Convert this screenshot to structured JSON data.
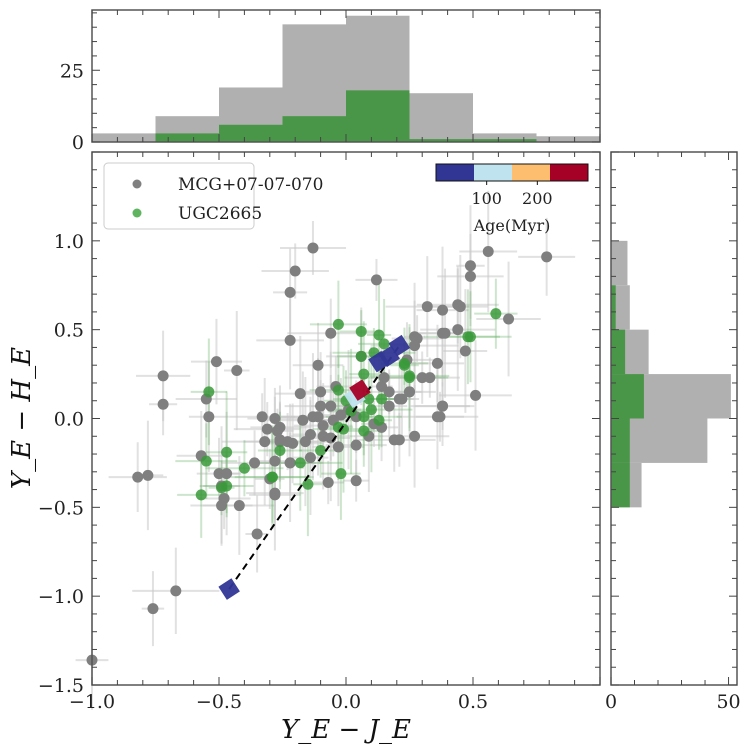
{
  "chart_data": [
    {
      "id": "main",
      "type": "scatter",
      "title": "",
      "xlabel": "Y_E − J_E",
      "ylabel": "Y_E − H_E",
      "xlim": [
        -1.0,
        1.0
      ],
      "ylim": [
        -1.5,
        1.5
      ],
      "xticks": [
        -1.0,
        -0.5,
        0.0,
        0.5
      ],
      "xtick_labels": [
        "−1.0",
        "−0.5",
        "0.0",
        "0.5"
      ],
      "yticks": [
        -1.5,
        -1.0,
        -0.5,
        0.0,
        0.5,
        1.0
      ],
      "ytick_labels": [
        "−1.5",
        "−1.0",
        "−0.5",
        "0.0",
        "0.5",
        "1.0"
      ],
      "grid": false,
      "legend_position": "top-left",
      "series": [
        {
          "name": "MCG+07-07-070",
          "color": "#808080",
          "points": [
            [
              -0.72,
              0.24
            ],
            [
              -0.72,
              0.08
            ],
            [
              -0.51,
              0.32
            ],
            [
              -0.43,
              0.27
            ],
            [
              -0.55,
              0.11
            ],
            [
              -0.54,
              0.01
            ],
            [
              -0.33,
              0.01
            ],
            [
              -0.28,
              0.0
            ],
            [
              -0.31,
              -0.06
            ],
            [
              -0.26,
              -0.05
            ],
            [
              -0.27,
              -0.07
            ],
            [
              -0.32,
              -0.13
            ],
            [
              -0.26,
              -0.13
            ],
            [
              -0.23,
              -0.13
            ],
            [
              -0.57,
              -0.21
            ],
            [
              -0.36,
              -0.25
            ],
            [
              -0.28,
              -0.24
            ],
            [
              -0.22,
              -0.25
            ],
            [
              -0.82,
              -0.33
            ],
            [
              -0.78,
              -0.32
            ],
            [
              -0.5,
              -0.31
            ],
            [
              -0.47,
              -0.31
            ],
            [
              -0.49,
              -0.38
            ],
            [
              -0.48,
              -0.45
            ],
            [
              -0.49,
              -0.49
            ],
            [
              -0.42,
              -0.49
            ],
            [
              -0.3,
              -0.34
            ],
            [
              -0.28,
              -0.43
            ],
            [
              -0.35,
              -0.65
            ],
            [
              -0.22,
              0.44
            ],
            [
              -0.06,
              0.48
            ],
            [
              -0.11,
              0.3
            ],
            [
              -0.18,
              0.14
            ],
            [
              -0.1,
              0.15
            ],
            [
              -0.04,
              0.18
            ],
            [
              -0.1,
              0.07
            ],
            [
              -0.06,
              0.07
            ],
            [
              -0.13,
              0.01
            ],
            [
              -0.11,
              0.01
            ],
            [
              -0.17,
              -0.01
            ],
            [
              -0.09,
              -0.04
            ],
            [
              -0.05,
              -0.01
            ],
            [
              -0.14,
              -0.09
            ],
            [
              -0.09,
              -0.1
            ],
            [
              -0.06,
              -0.11
            ],
            [
              -0.26,
              -0.12
            ],
            [
              -0.21,
              -0.14
            ],
            [
              -0.16,
              -0.13
            ],
            [
              -0.03,
              -0.16
            ],
            [
              0.04,
              -0.15
            ],
            [
              0.09,
              -0.1
            ],
            [
              0.19,
              -0.12
            ],
            [
              0.21,
              -0.12
            ],
            [
              0.27,
              -0.1
            ],
            [
              -0.22,
              -0.25
            ],
            [
              -0.14,
              -0.22
            ],
            [
              -0.07,
              -0.36
            ],
            [
              0.04,
              -0.35
            ],
            [
              -0.28,
              -0.42
            ],
            [
              0.15,
              0.23
            ],
            [
              0.17,
              0.15
            ],
            [
              0.21,
              0.11
            ],
            [
              0.25,
              0.15
            ],
            [
              0.17,
              0.07
            ],
            [
              0.3,
              0.23
            ],
            [
              0.33,
              0.23
            ],
            [
              0.38,
              0.07
            ],
            [
              0.37,
              0.01
            ],
            [
              0.36,
              0.31
            ],
            [
              0.27,
              0.46
            ],
            [
              0.38,
              0.48
            ],
            [
              0.47,
              0.38
            ],
            [
              0.06,
              0.35
            ],
            [
              0.04,
              0.01
            ],
            [
              0.01,
              0.05
            ],
            [
              0.11,
              -0.03
            ],
            [
              0.14,
              -0.05
            ],
            [
              0.14,
              0.18
            ],
            [
              -0.02,
              0.02
            ],
            [
              0.56,
              0.94
            ],
            [
              0.79,
              0.91
            ],
            [
              0.49,
              0.86
            ],
            [
              0.49,
              0.8
            ],
            [
              0.32,
              0.63
            ],
            [
              0.38,
              0.61
            ],
            [
              0.44,
              0.64
            ],
            [
              0.45,
              0.63
            ],
            [
              0.44,
              0.5
            ],
            [
              0.39,
              0.48
            ],
            [
              0.64,
              0.56
            ],
            [
              0.28,
              0.45
            ],
            [
              0.27,
              0.41
            ],
            [
              0.24,
              0.33
            ],
            [
              0.51,
              0.13
            ],
            [
              0.38,
              0.07
            ],
            [
              0.36,
              0.01
            ],
            [
              0.22,
              0.11
            ],
            [
              0.25,
              0.15
            ],
            [
              -0.13,
              0.96
            ],
            [
              -0.2,
              0.83
            ],
            [
              -0.22,
              0.71
            ],
            [
              0.12,
              0.78
            ],
            [
              -0.67,
              -0.97
            ],
            [
              -0.76,
              -1.07
            ],
            [
              -1.0,
              -1.36
            ]
          ]
        },
        {
          "name": "UGC2665",
          "color": "#3a9a3a",
          "points": [
            [
              -0.54,
              0.15
            ],
            [
              -0.47,
              -0.19
            ],
            [
              -0.55,
              -0.24
            ],
            [
              -0.4,
              -0.28
            ],
            [
              -0.26,
              -0.18
            ],
            [
              -0.29,
              -0.33
            ],
            [
              -0.49,
              -0.39
            ],
            [
              -0.47,
              -0.38
            ],
            [
              -0.57,
              -0.43
            ],
            [
              0.06,
              0.49
            ],
            [
              0.13,
              0.47
            ],
            [
              0.15,
              0.42
            ],
            [
              0.11,
              0.37
            ],
            [
              0.06,
              0.35
            ],
            [
              0.23,
              0.31
            ],
            [
              0.07,
              0.25
            ],
            [
              0.25,
              0.24
            ],
            [
              -0.03,
              0.16
            ],
            [
              0.0,
              0.1
            ],
            [
              0.09,
              0.11
            ],
            [
              0.14,
              0.11
            ],
            [
              0.1,
              0.05
            ],
            [
              0.02,
              0.04
            ],
            [
              0.07,
              0.01
            ],
            [
              0.13,
              -0.01
            ],
            [
              -0.03,
              -0.05
            ],
            [
              -0.01,
              -0.06
            ],
            [
              0.07,
              -0.07
            ],
            [
              -0.1,
              -0.18
            ],
            [
              -0.18,
              -0.25
            ],
            [
              -0.29,
              -0.33
            ],
            [
              -0.02,
              -0.31
            ],
            [
              -0.15,
              -0.37
            ],
            [
              0.48,
              0.46
            ],
            [
              0.59,
              0.59
            ],
            [
              0.49,
              0.46
            ],
            [
              0.23,
              0.3
            ],
            [
              0.25,
              0.23
            ],
            [
              -0.03,
              0.53
            ]
          ]
        }
      ],
      "model_track": {
        "style": "dashed",
        "color": "#000000",
        "start": [
          -0.46,
          -0.96
        ],
        "end": [
          0.21,
          0.41
        ]
      },
      "model_points": [
        {
          "x": -0.46,
          "y": -0.96,
          "age_bin": 0
        },
        {
          "x": 0.035,
          "y": 0.12,
          "age_bin": 1
        },
        {
          "x": 0.055,
          "y": 0.16,
          "age_bin": 3
        },
        {
          "x": 0.13,
          "y": 0.32,
          "age_bin": 0
        },
        {
          "x": 0.17,
          "y": 0.35,
          "age_bin": 0
        },
        {
          "x": 0.21,
          "y": 0.41,
          "age_bin": 0
        }
      ],
      "colorbar": {
        "label": "Age(Myr)",
        "colors": [
          "#313695",
          "#bfe3ef",
          "#fdbf6f",
          "#a50026"
        ],
        "range": [
          0,
          300
        ],
        "ticks": [
          100,
          200
        ],
        "tick_labels": [
          "100",
          "200"
        ]
      }
    },
    {
      "id": "top-histogram",
      "type": "bar",
      "xlim": [
        -1.0,
        1.0
      ],
      "ylim": [
        0,
        46
      ],
      "yticks": [
        0,
        25
      ],
      "ytick_labels": [
        "0",
        "25"
      ],
      "bin_edges": [
        -1.0,
        -0.75,
        -0.5,
        -0.25,
        0.0,
        0.25,
        0.5,
        0.75,
        1.0
      ],
      "series": [
        {
          "name": "MCG+07-07-070",
          "color": "#b0b0b0",
          "values": [
            3,
            9,
            19,
            41,
            44,
            17,
            3,
            2
          ]
        },
        {
          "name": "UGC2665",
          "color": "#4a9648",
          "values": [
            0,
            3,
            6,
            9,
            18,
            1,
            1,
            0
          ]
        }
      ]
    },
    {
      "id": "right-histogram",
      "type": "bar",
      "orientation": "horizontal",
      "xlim": [
        0,
        53.6
      ],
      "ylim": [
        -1.5,
        1.5
      ],
      "xticks": [
        0,
        50
      ],
      "xtick_labels": [
        "0",
        "50"
      ],
      "bin_edges": [
        -0.5,
        -0.25,
        0.0,
        0.25,
        0.5,
        0.75,
        1.0
      ],
      "series": [
        {
          "name": "MCG+07-07-070",
          "color": "#b0b0b0",
          "values": [
            13,
            41,
            51,
            16,
            8,
            7
          ]
        },
        {
          "name": "UGC2665",
          "color": "#4a9648",
          "values": [
            8,
            8,
            14,
            6,
            2,
            0
          ]
        }
      ]
    }
  ]
}
